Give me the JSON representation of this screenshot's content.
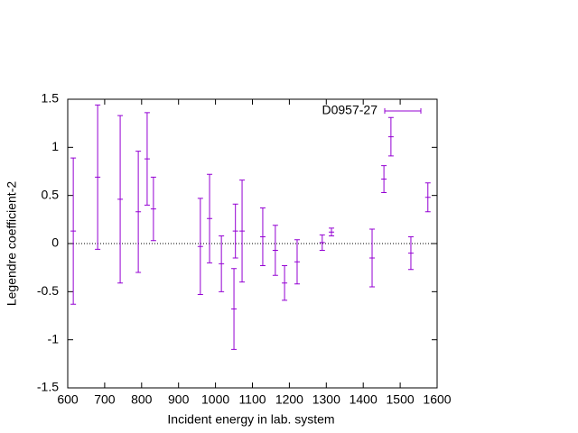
{
  "chart_data": {
    "type": "errorbar",
    "x_label": "Incident energy in lab. system",
    "y_label": "Legendre coefficient-2",
    "xlim": [
      600,
      1600
    ],
    "xticks": [
      600,
      700,
      800,
      900,
      1000,
      1100,
      1200,
      1300,
      1400,
      1500,
      1600
    ],
    "ylim": [
      -1.5,
      1.5
    ],
    "yticks": [
      -1.5,
      -1,
      -0.5,
      0,
      0.5,
      1,
      1.5
    ],
    "zero_line": true,
    "legend": "top-right",
    "series": [
      {
        "name": "D0957-27",
        "color": "#9400d3",
        "x": [
          615,
          681,
          742,
          791,
          815,
          832,
          959,
          984,
          1016,
          1050,
          1054,
          1072,
          1128,
          1162,
          1187,
          1221,
          1289,
          1314,
          1424,
          1456,
          1475,
          1529,
          1575
        ],
        "values": [
          0.13,
          0.69,
          0.46,
          0.33,
          0.88,
          0.36,
          -0.03,
          0.26,
          -0.21,
          -0.68,
          0.13,
          0.13,
          0.07,
          -0.07,
          -0.41,
          -0.19,
          0.01,
          0.12,
          -0.15,
          0.67,
          1.11,
          -0.1,
          0.48
        ],
        "errors": [
          0.76,
          0.75,
          0.87,
          0.63,
          0.48,
          0.33,
          0.5,
          0.46,
          0.29,
          0.42,
          0.28,
          0.53,
          0.3,
          0.26,
          0.18,
          0.23,
          0.08,
          0.04,
          0.3,
          0.14,
          0.2,
          0.17,
          0.15
        ]
      }
    ]
  }
}
